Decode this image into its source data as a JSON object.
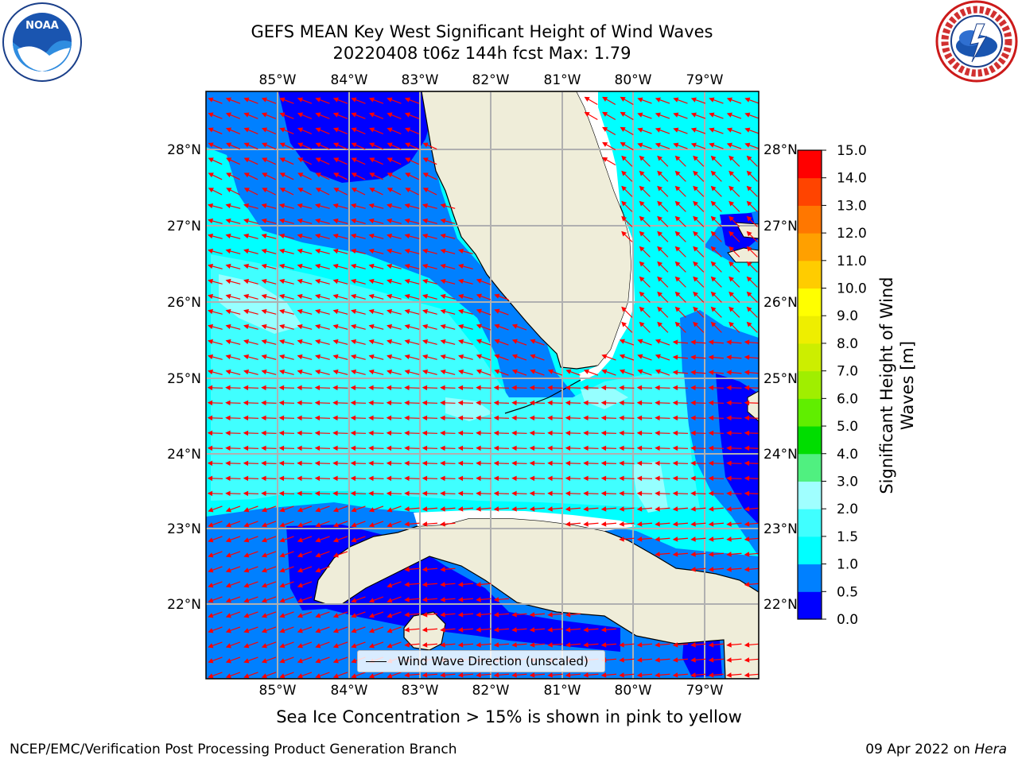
{
  "header": {
    "title_line1": "GEFS MEAN Key West Significant Height of Wind Waves",
    "title_line2": "20220408 t06z 144h fcst   Max: 1.79"
  },
  "logos": {
    "left": "NOAA",
    "right": "NATIONAL WEATHER SERVICE"
  },
  "map": {
    "lon_labels": [
      "85°W",
      "84°W",
      "83°W",
      "82°W",
      "81°W",
      "80°W",
      "79°W"
    ],
    "lat_labels": [
      "28°N",
      "27°N",
      "26°N",
      "25°N",
      "24°N",
      "23°N",
      "22°N"
    ],
    "land_color": "#efedd9",
    "arrow_color": "#ff0000"
  },
  "legend": {
    "label": "Wind Wave Direction (unscaled)"
  },
  "colorbar": {
    "title": "Significant Height of Wind Waves [m]",
    "ticks": [
      "0.0",
      "0.5",
      "1.0",
      "1.5",
      "2.0",
      "3.0",
      "4.0",
      "5.0",
      "6.0",
      "7.0",
      "8.0",
      "9.0",
      "10.0",
      "11.0",
      "12.0",
      "13.0",
      "14.0",
      "15.0"
    ],
    "colors": [
      "#0000ff",
      "#0080ff",
      "#00ffff",
      "#40ffff",
      "#a0ffff",
      "#50f080",
      "#00dd00",
      "#60ee00",
      "#a0ee00",
      "#ccee00",
      "#eeee00",
      "#ffff00",
      "#ffcc00",
      "#ffa000",
      "#ff7700",
      "#ff4400",
      "#ff0000"
    ]
  },
  "footer": {
    "sea_ice_note": "Sea Ice Concentration > 15% is shown in pink to yellow",
    "branch": "NCEP/EMC/Verification Post Processing Product Generation Branch",
    "date": "09 Apr 2022",
    "on_word": "on",
    "host": "Hera"
  }
}
